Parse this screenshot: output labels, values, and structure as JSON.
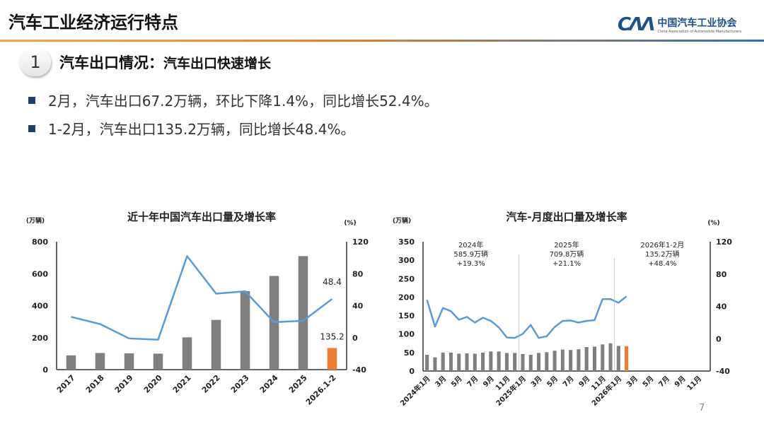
{
  "header": {
    "title": "汽车工业经济运行特点",
    "logo_cn": "中国汽车工业协会",
    "logo_en": "China Association of Automobile Manufacturers",
    "logo_mark": "CAM"
  },
  "section": {
    "number": "1",
    "heading": "汽车出口情况：",
    "subheading": "汽车出口快速增长"
  },
  "bullets": [
    "2月，汽车出口67.2万辆，环比下降1.4%，同比增长52.4%。",
    "1-2月，汽车出口135.2万辆，同比增长48.4%。"
  ],
  "page_number": "7",
  "colors": {
    "bar": "#7f7f7f",
    "highlight": "#ed7d31",
    "line": "#5b9bd5",
    "bullet": "#1f3f6e"
  },
  "chart_data": [
    {
      "type": "bar+line",
      "title": "近十年中国汽车出口量及增长率",
      "ylabel": "(万辆)",
      "y2label": "(%)",
      "ylim": [
        0,
        800
      ],
      "yticks": [
        0,
        200,
        400,
        600,
        800
      ],
      "y2lim": [
        -40,
        120
      ],
      "y2ticks": [
        -40,
        0,
        40,
        80,
        120
      ],
      "categories": [
        "2017",
        "2018",
        "2019",
        "2020",
        "2021",
        "2022",
        "2023",
        "2024",
        "2025",
        "2026.1-2"
      ],
      "series": [
        {
          "kind": "bar",
          "values": [
            89,
            104,
            102,
            100,
            202,
            311,
            491,
            586,
            710,
            135.2
          ]
        },
        {
          "kind": "line",
          "axis": "right",
          "values": [
            26,
            17,
            -1,
            -2.5,
            102,
            55,
            58,
            19.3,
            21.1,
            48.4
          ]
        }
      ],
      "data_labels": {
        "bar_last": "135.2",
        "line_last": "48.4"
      },
      "grid": false
    },
    {
      "type": "bar+line",
      "title": "汽车-月度出口量及增长率",
      "ylabel": "(万辆)",
      "y2label": "(%)",
      "ylim": [
        0,
        350
      ],
      "yticks": [
        0,
        50,
        100,
        150,
        200,
        250,
        300,
        350
      ],
      "y2lim": [
        -40,
        120
      ],
      "y2ticks": [
        -40,
        0,
        40,
        80,
        120
      ],
      "xtick_labels": [
        "2024年1月",
        "3月",
        "5月",
        "7月",
        "9月",
        "11月",
        "2025年1月",
        "3月",
        "5月",
        "7月",
        "9月",
        "11月",
        "2026年1月",
        "3月",
        "5月",
        "7月",
        "9月",
        "11月"
      ],
      "months_total": 36,
      "series": [
        {
          "kind": "bar",
          "values": [
            44,
            37,
            50,
            50,
            47,
            48,
            47,
            50,
            53,
            53,
            49,
            49,
            46,
            44,
            49,
            51,
            55,
            58,
            57,
            59,
            65,
            66,
            72,
            75,
            68,
            67.2
          ]
        },
        {
          "kind": "line",
          "axis": "right",
          "values": [
            48,
            15,
            38,
            34,
            23.5,
            27,
            20,
            26,
            22,
            14,
            1.5,
            1,
            6,
            17,
            1,
            3,
            14.5,
            22,
            22.5,
            20,
            22,
            23,
            49,
            49,
            44.5,
            52.4
          ]
        }
      ],
      "annotations": [
        {
          "lines": [
            "2024年",
            "585.9万辆",
            "+19.3%"
          ]
        },
        {
          "lines": [
            "2025年",
            "709.8万辆",
            "+21.1%"
          ]
        },
        {
          "lines": [
            "2026年1-2月",
            "135.2万辆",
            "+48.4%"
          ]
        }
      ],
      "grid": false
    }
  ]
}
